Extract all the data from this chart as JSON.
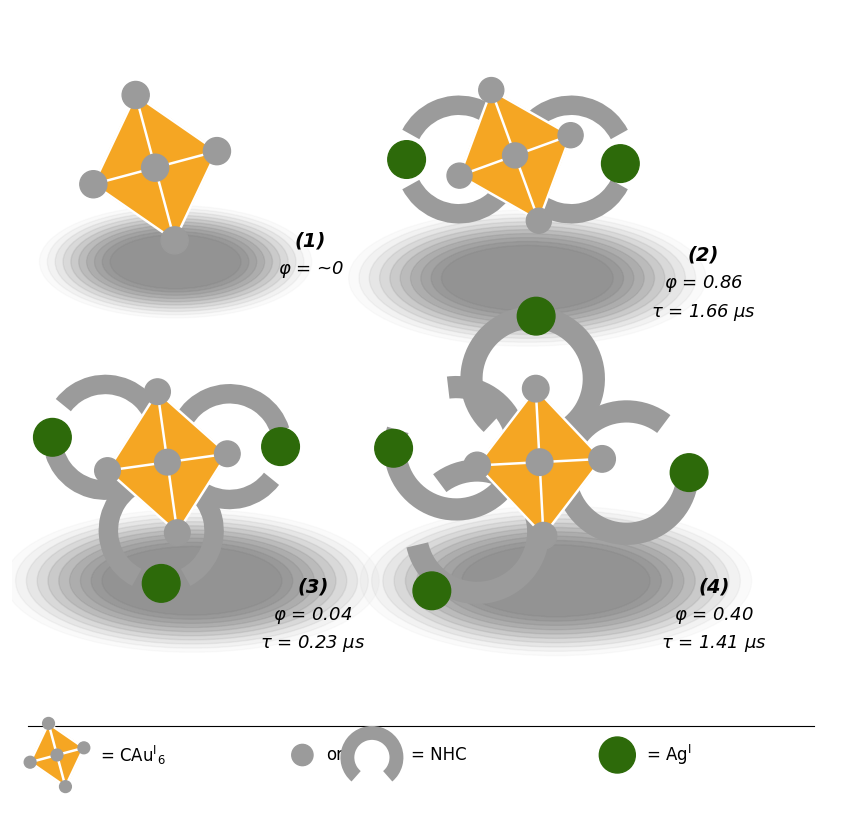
{
  "background_color": "#ffffff",
  "orange_color": "#F5A623",
  "gray_color": "#9B9B9B",
  "dark_green_color": "#2D6A0A",
  "white_line_color": "#ffffff",
  "panels": [
    {
      "id": 1,
      "label": "(1)",
      "phi": "φ = ~0",
      "tau": null
    },
    {
      "id": 2,
      "label": "(2)",
      "phi": "φ = 0.86",
      "tau": "τ = 1.66 μs"
    },
    {
      "id": 3,
      "label": "(3)",
      "phi": "φ = 0.04",
      "tau": "τ = 0.23 μs"
    },
    {
      "id": 4,
      "label": "(4)",
      "phi": "φ = 0.40",
      "tau": "τ = 1.41 μs"
    }
  ]
}
